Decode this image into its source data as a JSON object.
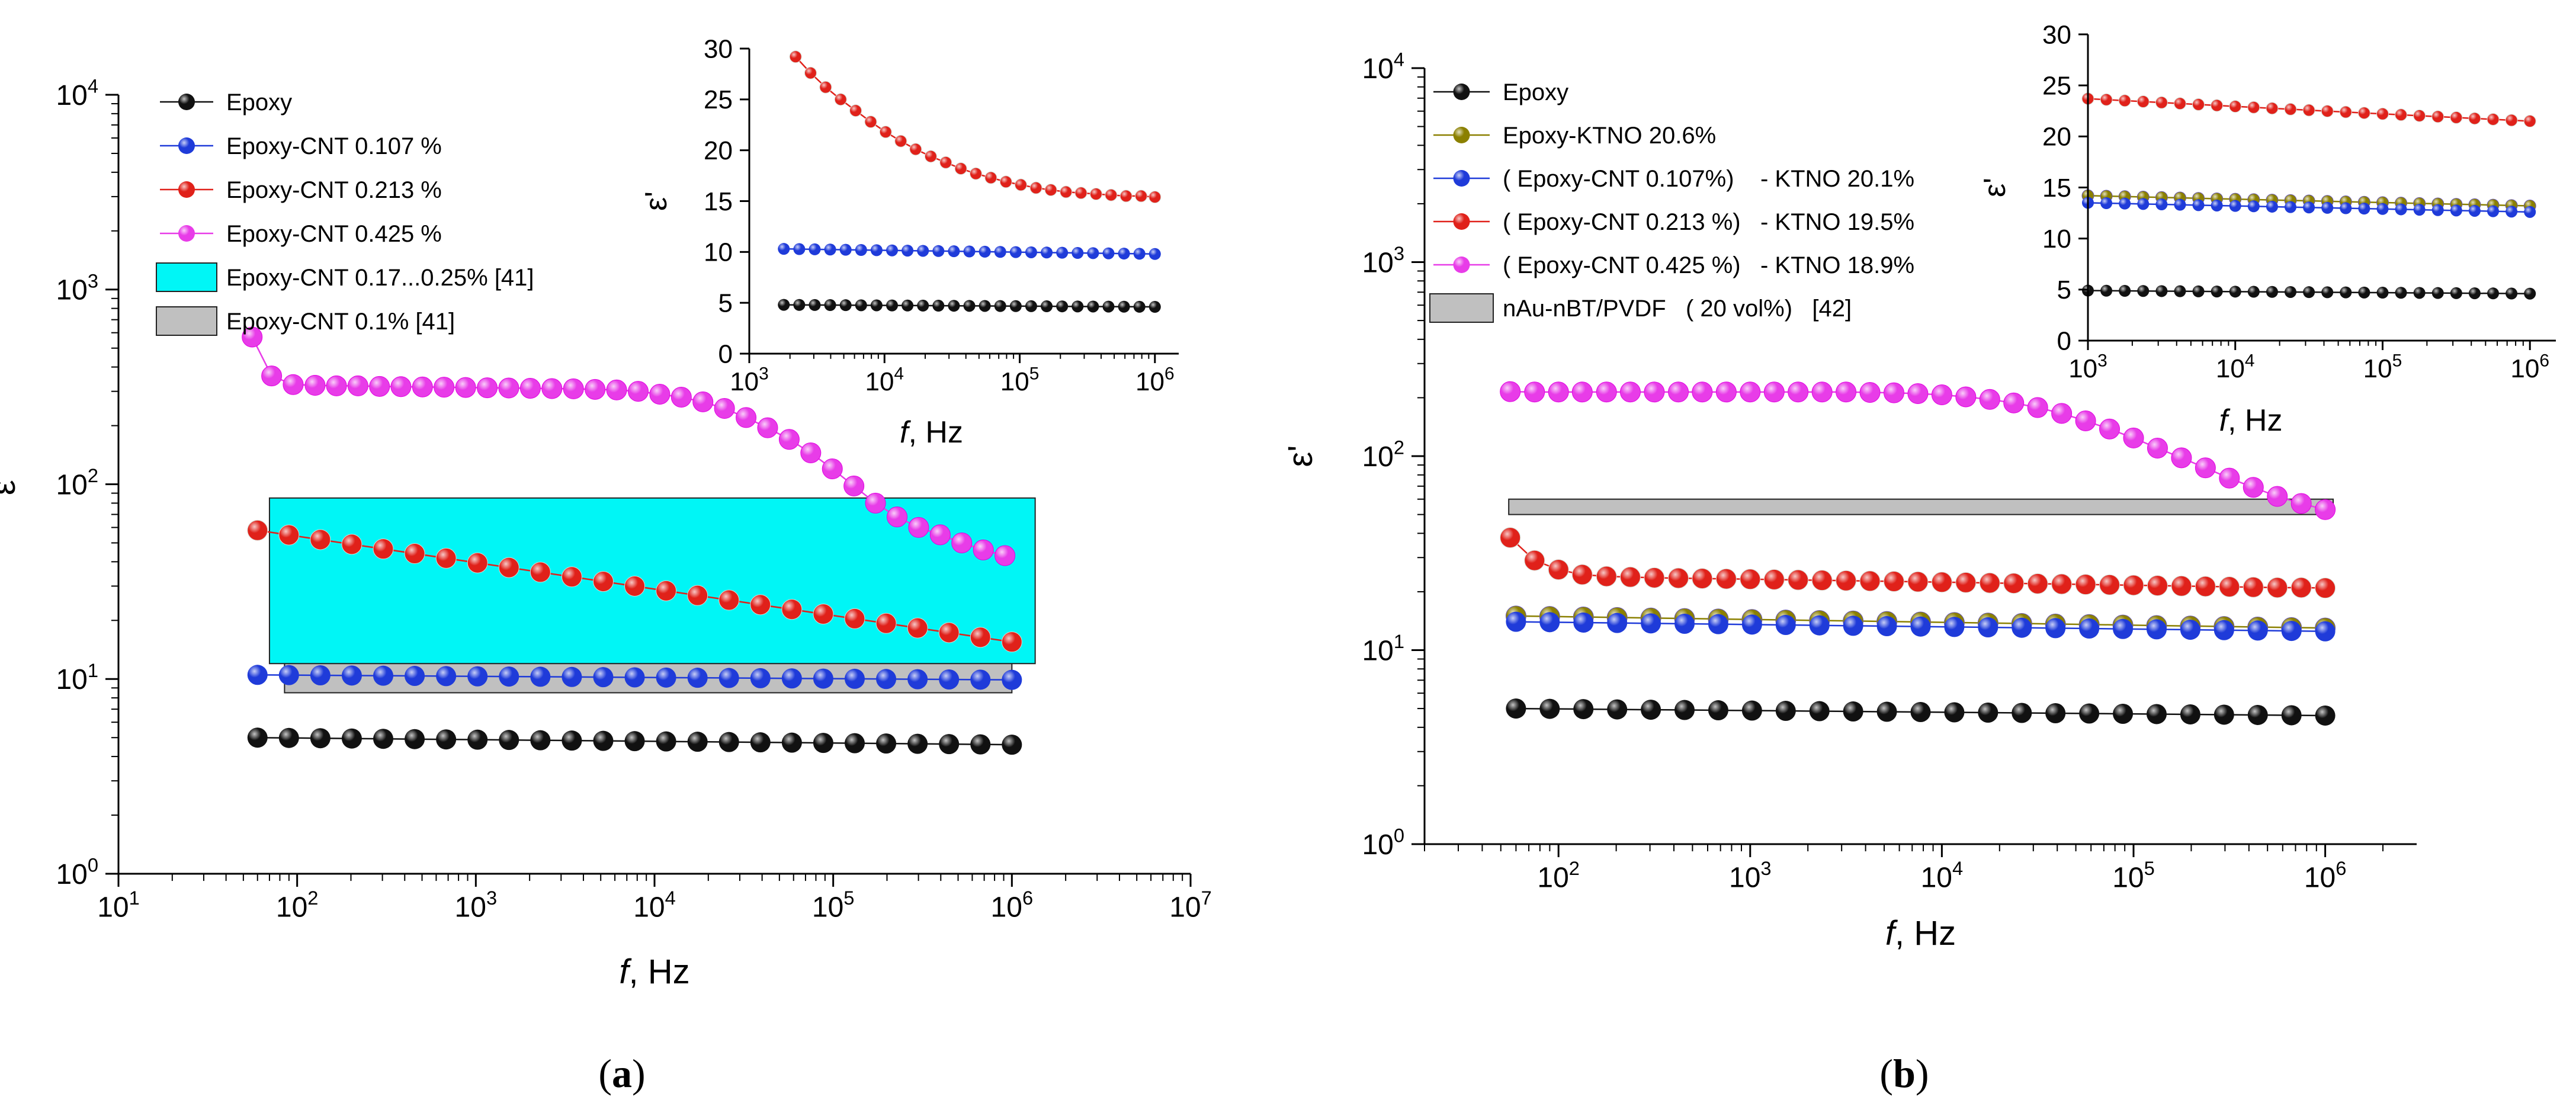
{
  "colors": {
    "Epoxy": "#111111",
    "Epoxy-KTNO": "#8b8000",
    "blue": "#1f3bd9",
    "red": "#e0211a",
    "magenta": "#e83ce8",
    "gray_band": "#c0c0c0",
    "cyan_band": "#00f6f6"
  },
  "panels": {
    "a": {
      "caption_open": "(",
      "caption_letter": "a",
      "caption_close": ")"
    },
    "b": {
      "caption_open": "(",
      "caption_letter": "b",
      "caption_close": ")"
    }
  },
  "chart_data": [
    {
      "id": "a-main",
      "type": "scatter",
      "x_scale": "log",
      "y_scale": "log",
      "xlim": [
        10,
        10000000
      ],
      "ylim": [
        1,
        10000
      ],
      "xlabel_italic": "f",
      "xlabel_rest": ", Hz",
      "ylabel": "ε'",
      "x_ticks": [
        10,
        100,
        1000,
        10000,
        100000,
        1000000,
        10000000
      ],
      "y_ticks": [
        1,
        10,
        100,
        1000,
        10000
      ],
      "legend_position": "top-left",
      "series": [
        {
          "name": "Epoxy",
          "color_key": "Epoxy",
          "start": 60,
          "end": 1000000,
          "n": 25,
          "values_start": 5.0,
          "values_end": 4.6
        },
        {
          "name": "Epoxy-CNT 0.107 %",
          "color_key": "blue",
          "start": 60,
          "end": 1000000,
          "n": 25,
          "values_start": 10.5,
          "values_end": 9.9
        },
        {
          "name": "Epoxy-CNT 0.213 %",
          "color_key": "red",
          "start": 60,
          "end": 1000000,
          "n": 25,
          "values_start": 58,
          "values_end": 15.5
        },
        {
          "name": "Epoxy-CNT 0.425 %",
          "color_key": "magenta",
          "x": [
            56,
            72,
            95,
            126,
            166,
            219,
            289,
            381,
            503,
            664,
            877,
            1158,
            1529,
            2019,
            2666,
            3520,
            4649,
            6138,
            8105,
            10702,
            14132,
            18661,
            24640,
            32537,
            42963,
            56732,
            74912,
            98918,
            130617,
            172476,
            227748,
            300731,
            397103,
            524359,
            692398,
            914282
          ],
          "y": [
            570,
            360,
            325,
            322,
            320,
            320,
            318,
            317,
            316,
            315,
            314,
            313,
            312,
            311,
            310,
            309,
            307,
            305,
            300,
            290,
            280,
            265,
            245,
            220,
            195,
            170,
            145,
            120,
            98,
            80,
            68,
            60,
            55,
            50,
            46,
            43
          ]
        }
      ],
      "bands": [
        {
          "name": "Epoxy-CNT 0.1% [41]",
          "color_key": "gray_band",
          "x": [
            85,
            1000000
          ],
          "y": [
            8.5,
            17
          ]
        },
        {
          "name": "Epoxy-CNT 0.17...0.25% [41]",
          "color_key": "cyan_band",
          "x": [
            70,
            1350000
          ],
          "y": [
            12,
            85
          ]
        }
      ]
    },
    {
      "id": "a-inset",
      "type": "scatter",
      "x_scale": "log",
      "y_scale": "linear",
      "xlim": [
        1000,
        1500000
      ],
      "ylim": [
        0,
        30
      ],
      "xlabel_italic": "f",
      "xlabel_rest": ", Hz",
      "ylabel": "ε'",
      "x_ticks": [
        1000,
        10000,
        100000,
        1000000
      ],
      "y_ticks": [
        0,
        5,
        10,
        15,
        20,
        25,
        30
      ],
      "series": [
        {
          "name": "Epoxy",
          "color_key": "Epoxy",
          "start": 1800,
          "end": 1000000,
          "n": 25,
          "values_start": 4.8,
          "values_end": 4.6
        },
        {
          "name": "Epoxy-CNT 0.107 %",
          "color_key": "blue",
          "start": 1800,
          "end": 1000000,
          "n": 25,
          "values_start": 10.3,
          "values_end": 9.8
        },
        {
          "name": "Epoxy-CNT 0.213 %",
          "color_key": "red",
          "x": [
            2200,
            2840,
            3670,
            4740,
            6120,
            7910,
            10200,
            13200,
            17000,
            22000,
            28400,
            36700,
            47400,
            61200,
            79100,
            102000,
            132000,
            170000,
            220000,
            284000,
            367000,
            474000,
            612000,
            791000,
            1000000
          ],
          "y": [
            29.2,
            27.6,
            26.2,
            25.0,
            23.9,
            22.8,
            21.8,
            20.9,
            20.1,
            19.4,
            18.8,
            18.2,
            17.7,
            17.3,
            16.9,
            16.6,
            16.3,
            16.1,
            15.9,
            15.8,
            15.7,
            15.6,
            15.5,
            15.5,
            15.4
          ]
        }
      ]
    },
    {
      "id": "b-main",
      "type": "scatter",
      "x_scale": "log",
      "y_scale": "log",
      "xlim": [
        20,
        3000000
      ],
      "ylim": [
        1,
        10000
      ],
      "xlabel_italic": "f",
      "xlabel_rest": ", Hz",
      "ylabel": "ε'",
      "x_ticks": [
        100,
        1000,
        10000,
        100000,
        1000000
      ],
      "y_ticks": [
        1,
        10,
        100,
        1000,
        10000
      ],
      "legend_position": "top-left",
      "series": [
        {
          "name": "Epoxy",
          "color_key": "Epoxy",
          "start": 60,
          "end": 1000000,
          "n": 25,
          "values_start": 5.0,
          "values_end": 4.6
        },
        {
          "name": "Epoxy-KTNO 20.6%",
          "color_key": "Epoxy-KTNO",
          "start": 60,
          "end": 1000000,
          "n": 25,
          "values_start": 15.0,
          "values_end": 13.0
        },
        {
          "name": "( Epoxy-CNT 0.107%)    - KTNO 20.1%",
          "color_key": "blue",
          "start": 60,
          "end": 1000000,
          "n": 25,
          "values_start": 14.0,
          "values_end": 12.5
        },
        {
          "name": "( Epoxy-CNT 0.213 %)   - KTNO 19.5%",
          "color_key": "red",
          "x": [
            56,
            75,
            100,
            133,
            178,
            237,
            316,
            422,
            562,
            750,
            1000,
            1334,
            1778,
            2371,
            3162,
            4217,
            5623,
            7499,
            10000,
            13335,
            17783,
            23714,
            31623,
            42170,
            56234,
            74989,
            100000,
            133352,
            177828,
            237137,
            316228,
            421697,
            562341,
            749894,
            1000000
          ],
          "y": [
            38,
            29,
            26,
            24.5,
            24,
            23.8,
            23.6,
            23.5,
            23.4,
            23.3,
            23.2,
            23.1,
            23.0,
            22.9,
            22.8,
            22.7,
            22.6,
            22.5,
            22.4,
            22.3,
            22.2,
            22.1,
            22.0,
            21.9,
            21.8,
            21.7,
            21.6,
            21.5,
            21.4,
            21.3,
            21.2,
            21.1,
            21.0,
            21.0,
            20.9
          ]
        },
        {
          "name": "( Epoxy-CNT 0.425 %)   - KTNO 18.9%",
          "color_key": "magenta",
          "x": [
            56,
            75,
            100,
            133,
            178,
            237,
            316,
            422,
            562,
            750,
            1000,
            1334,
            1778,
            2371,
            3162,
            4217,
            5623,
            7499,
            10000,
            13335,
            17783,
            23714,
            31623,
            42170,
            56234,
            74989,
            100000,
            133352,
            177828,
            237137,
            316228,
            421697,
            562341,
            749894,
            1000000
          ],
          "y": [
            215,
            214,
            214,
            214,
            214,
            214,
            214,
            214,
            214,
            214,
            214,
            214,
            214,
            214,
            214,
            213,
            212,
            210,
            207,
            202,
            196,
            188,
            178,
            166,
            152,
            138,
            124,
            110,
            98,
            87,
            77,
            69,
            62,
            57,
            53
          ]
        }
      ],
      "bands": [
        {
          "name": "nAu-nBT/PVDF   ( 20 vol%)   [42]",
          "color_key": "gray_band",
          "x": [
            55,
            1100000
          ],
          "y": [
            50,
            60
          ]
        }
      ]
    },
    {
      "id": "b-inset",
      "type": "scatter",
      "x_scale": "log",
      "y_scale": "linear",
      "xlim": [
        1000,
        1500000
      ],
      "ylim": [
        0,
        30
      ],
      "xlabel_italic": "f",
      "xlabel_rest": ", Hz",
      "ylabel": "ε'",
      "x_ticks": [
        1000,
        10000,
        100000,
        1000000
      ],
      "y_ticks": [
        0,
        5,
        10,
        15,
        20,
        25,
        30
      ],
      "series": [
        {
          "name": "Epoxy",
          "color_key": "Epoxy",
          "start": 1000,
          "end": 1000000,
          "n": 25,
          "values_start": 4.9,
          "values_end": 4.6
        },
        {
          "name": "Epoxy-KTNO 20.6%",
          "color_key": "Epoxy-KTNO",
          "start": 1000,
          "end": 1000000,
          "n": 25,
          "values_start": 14.2,
          "values_end": 13.2
        },
        {
          "name": "( Epoxy-CNT 0.107%)    - KTNO 20.1%",
          "color_key": "blue",
          "start": 1000,
          "end": 1000000,
          "n": 25,
          "values_start": 13.5,
          "values_end": 12.6
        },
        {
          "name": "( Epoxy-CNT 0.213 %)   - KTNO 19.5%",
          "color_key": "red",
          "start": 1000,
          "end": 1000000,
          "n": 25,
          "values_start": 23.7,
          "values_end": 21.5
        }
      ]
    }
  ]
}
